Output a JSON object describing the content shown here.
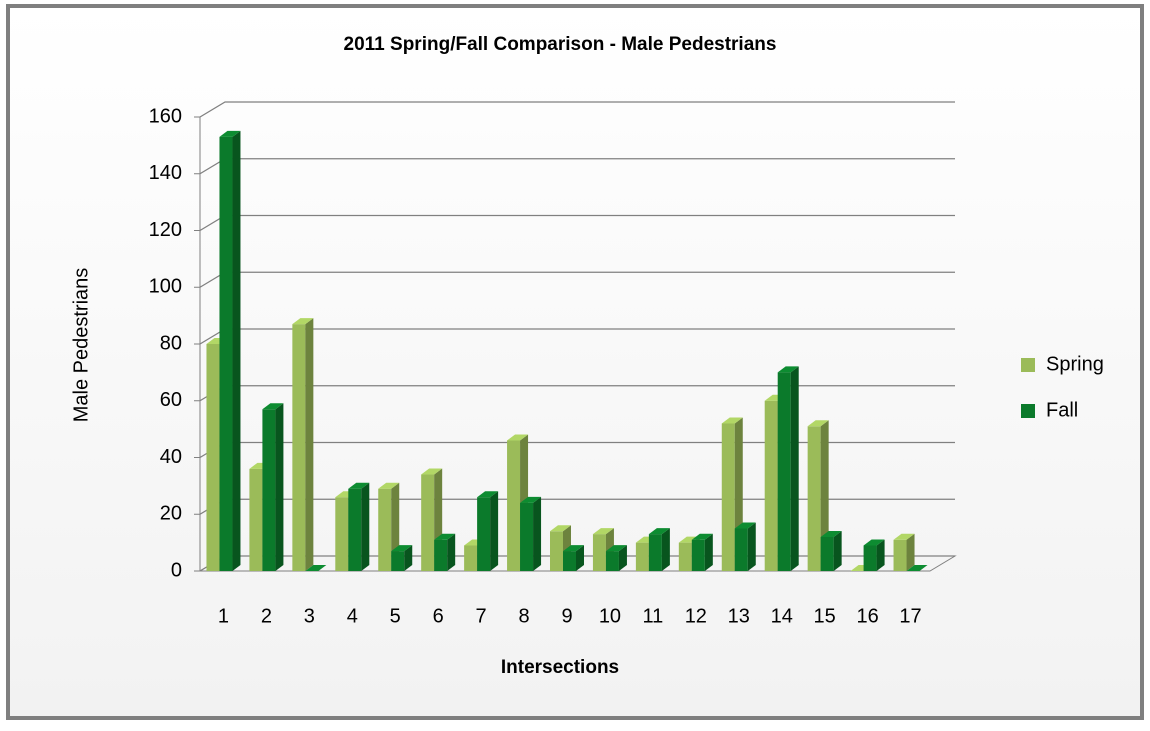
{
  "chart_data": {
    "type": "bar3d",
    "title": "2011 Spring/Fall Comparison - Male Pedestrians",
    "x_label": "Intersections",
    "y_label": "Male Pedestrians",
    "categories": [
      "1",
      "2",
      "3",
      "4",
      "5",
      "6",
      "7",
      "8",
      "9",
      "10",
      "11",
      "12",
      "13",
      "14",
      "15",
      "16",
      "17"
    ],
    "series": [
      {
        "name": "Spring",
        "color": "#9bbb59",
        "values": [
          80,
          36,
          87,
          26,
          29,
          34,
          9,
          46,
          14,
          13,
          10,
          10,
          52,
          60,
          51,
          0,
          11
        ]
      },
      {
        "name": "Fall",
        "color": "#0b7a2b",
        "values": [
          153,
          57,
          0,
          29,
          7,
          11,
          26,
          24,
          7,
          7,
          13,
          11,
          15,
          70,
          12,
          9,
          0
        ]
      }
    ],
    "ylim": [
      0,
      160
    ],
    "yticks": [
      0,
      20,
      40,
      60,
      80,
      100,
      120,
      140,
      160
    ],
    "grid": true,
    "legend": "right"
  }
}
